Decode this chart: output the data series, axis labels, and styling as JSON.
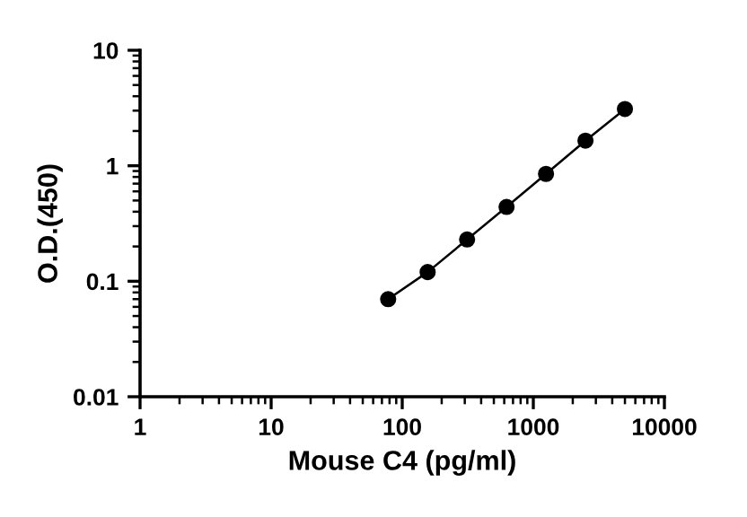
{
  "chart_data": {
    "type": "line",
    "xlabel": "Mouse C4 (pg/ml)",
    "ylabel": "O.D.(450)",
    "log": "xy",
    "marker": "circle",
    "line_style": "solid",
    "grid": false,
    "legend": false,
    "x": [
      78.1,
      156.25,
      312.5,
      625,
      1250,
      2500,
      5000
    ],
    "series": [
      {
        "color": "#000000",
        "values": [
          0.07,
          0.12,
          0.23,
          0.44,
          0.85,
          1.65,
          3.1
        ]
      }
    ],
    "xlim": [
      1,
      10000
    ],
    "xticks": [
      1,
      10,
      100,
      1000,
      10000
    ],
    "ylim": [
      0.01,
      10
    ],
    "yticks": [
      0.01,
      0.1,
      1,
      10
    ]
  }
}
